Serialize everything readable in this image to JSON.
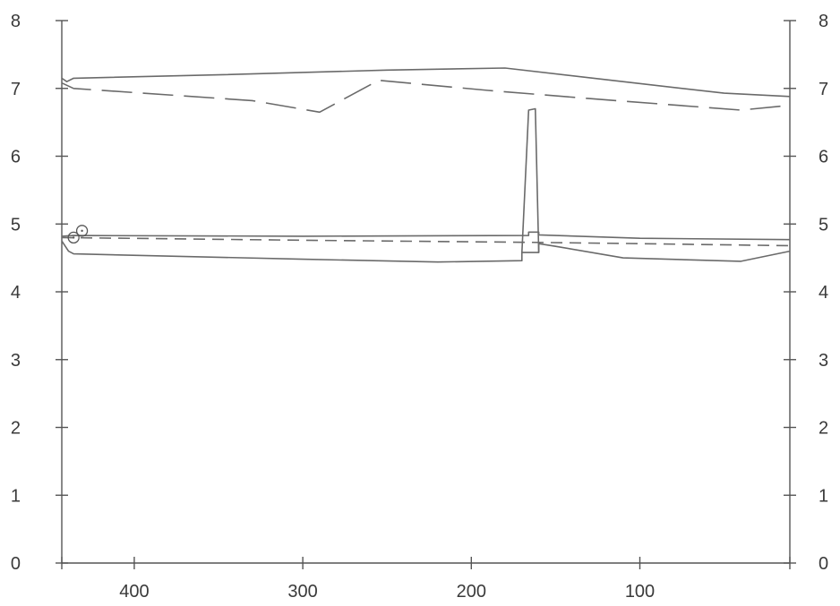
{
  "chart_data": {
    "type": "line",
    "title": "",
    "xlabel": "",
    "ylabel": "",
    "x_reversed": true,
    "xlim": [
      443,
      11
    ],
    "ylim": [
      0,
      8
    ],
    "grid": false,
    "x_ticks": [
      400,
      300,
      200,
      100
    ],
    "y_ticks": [
      0,
      1,
      2,
      3,
      4,
      5,
      6,
      7,
      8
    ],
    "y_ticks_right": [
      0,
      1,
      2,
      3,
      4,
      5,
      6,
      7,
      8
    ],
    "series": [
      {
        "style": "solid",
        "points": [
          [
            443,
            7.15
          ],
          [
            440,
            7.1
          ],
          [
            436,
            7.15
          ],
          [
            350,
            7.2
          ],
          [
            250,
            7.27
          ],
          [
            180,
            7.3
          ],
          [
            110,
            7.1
          ],
          [
            50,
            6.93
          ],
          [
            11,
            6.88
          ]
        ]
      },
      {
        "style": "long-dash",
        "points": [
          [
            443,
            7.08
          ],
          [
            436,
            7.0
          ],
          [
            330,
            6.82
          ],
          [
            290,
            6.65
          ],
          [
            255,
            7.12
          ],
          [
            190,
            6.97
          ],
          [
            130,
            6.85
          ],
          [
            40,
            6.68
          ],
          [
            11,
            6.75
          ]
        ]
      },
      {
        "style": "solid",
        "points": [
          [
            443,
            4.82
          ],
          [
            436,
            4.83
          ],
          [
            300,
            4.82
          ],
          [
            166,
            4.83
          ],
          [
            166,
            4.88
          ],
          [
            160,
            4.88
          ],
          [
            160,
            4.84
          ],
          [
            100,
            4.79
          ],
          [
            11,
            4.77
          ]
        ]
      },
      {
        "style": "short-dash",
        "points": [
          [
            443,
            4.8
          ],
          [
            300,
            4.76
          ],
          [
            166,
            4.73
          ],
          [
            100,
            4.71
          ],
          [
            11,
            4.68
          ]
        ]
      },
      {
        "style": "solid",
        "points": [
          [
            443,
            4.75
          ],
          [
            439,
            4.6
          ],
          [
            436,
            4.56
          ],
          [
            300,
            4.48
          ],
          [
            220,
            4.44
          ],
          [
            170,
            4.46
          ],
          [
            170,
            4.58
          ],
          [
            160,
            4.58
          ],
          [
            160,
            4.71
          ],
          [
            150,
            4.67
          ],
          [
            110,
            4.5
          ],
          [
            40,
            4.45
          ],
          [
            11,
            4.6
          ]
        ]
      },
      {
        "style": "solid",
        "points": [
          [
            170,
            4.58
          ],
          [
            166,
            6.68
          ],
          [
            162,
            6.7
          ],
          [
            160,
            4.58
          ]
        ]
      }
    ],
    "markers": [
      {
        "x": 436,
        "y": 4.8,
        "symbol": "circle-dot"
      },
      {
        "x": 431,
        "y": 4.9,
        "symbol": "circle-dot"
      }
    ]
  }
}
